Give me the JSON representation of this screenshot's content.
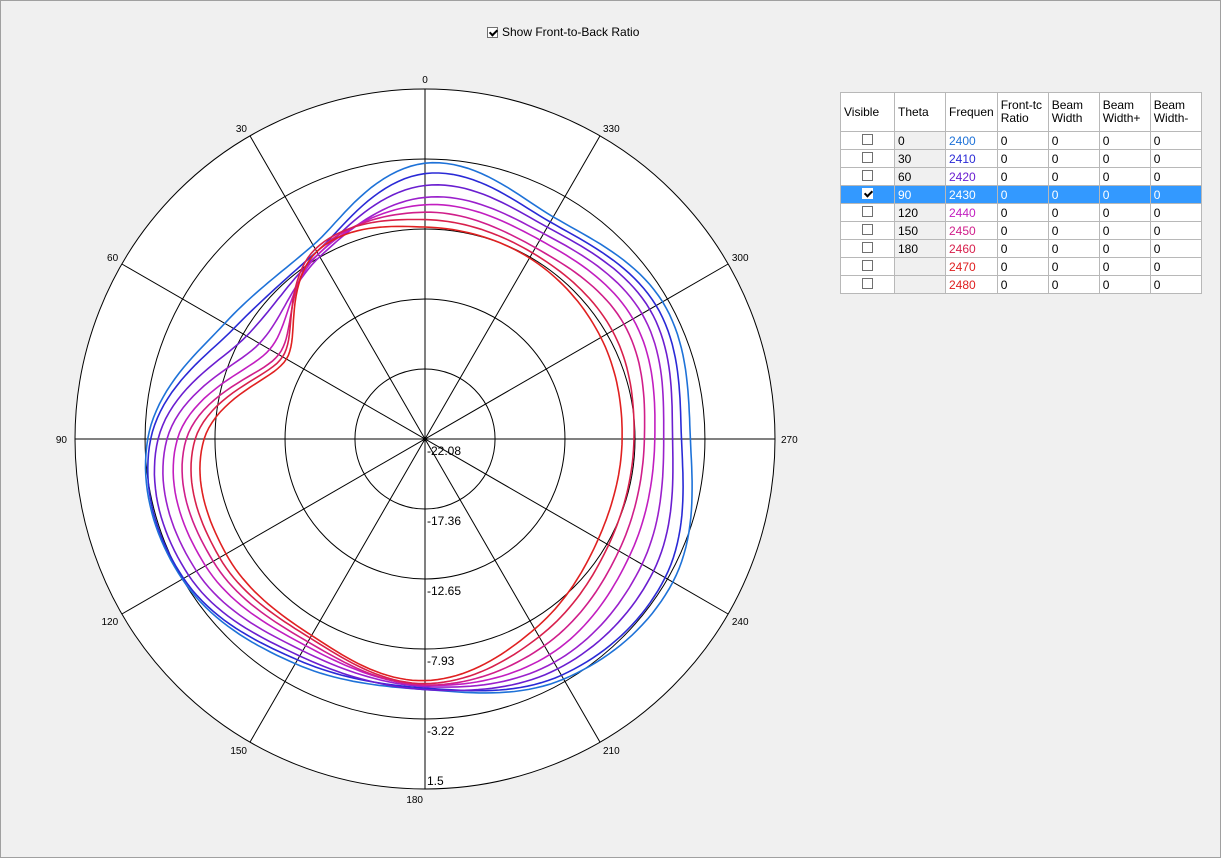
{
  "toolbar": {
    "fbr_label": "Show Front-to-Back Ratio",
    "fbr_checked": true
  },
  "chart_data": {
    "type": "polar",
    "angle_labels": [
      "0",
      "30",
      "60",
      "90",
      "120",
      "150",
      "180",
      "210",
      "240",
      "270",
      "300",
      "330"
    ],
    "radial_labels": [
      "-22.08",
      "-17.36",
      "-12.65",
      "-7.93",
      "-3.22",
      "1.5"
    ],
    "rlim": [
      -22.08,
      1.5
    ],
    "grid": true,
    "series": [
      {
        "name": "2400",
        "color": "#1e72d8",
        "r": [
          -3.5,
          -7.0,
          -6.5,
          -3.4,
          -3.2,
          -4.6,
          -5.2,
          -3.4,
          -2.8,
          -4.2,
          -3.6,
          -4.8
        ]
      },
      {
        "name": "2410",
        "color": "#2a2ad6",
        "r": [
          -4.2,
          -7.5,
          -7.2,
          -3.6,
          -3.3,
          -4.9,
          -5.3,
          -3.7,
          -3.4,
          -4.8,
          -4.1,
          -5.2
        ]
      },
      {
        "name": "2420",
        "color": "#6a1ed0",
        "r": [
          -5.0,
          -7.7,
          -8.2,
          -4.1,
          -3.7,
          -5.2,
          -5.2,
          -4.2,
          -4.3,
          -5.4,
          -4.6,
          -5.6
        ]
      },
      {
        "name": "2430",
        "color": "#9a20cc",
        "r": [
          -5.8,
          -7.9,
          -9.2,
          -4.7,
          -4.3,
          -5.6,
          -5.4,
          -4.7,
          -5.2,
          -6.0,
          -5.2,
          -6.1
        ]
      },
      {
        "name": "2440",
        "color": "#c21ec0",
        "r": [
          -6.3,
          -7.7,
          -10.0,
          -5.4,
          -5.0,
          -6.0,
          -5.5,
          -5.3,
          -6.2,
          -6.6,
          -5.9,
          -6.6
        ]
      },
      {
        "name": "2450",
        "color": "#d01e8a",
        "r": [
          -6.8,
          -7.5,
          -10.7,
          -6.0,
          -5.6,
          -6.3,
          -5.5,
          -6.0,
          -7.0,
          -7.3,
          -6.6,
          -7.2
        ]
      },
      {
        "name": "2460",
        "color": "#d8204c",
        "r": [
          -7.3,
          -7.3,
          -11.0,
          -6.6,
          -6.1,
          -6.6,
          -5.6,
          -6.7,
          -7.8,
          -8.0,
          -7.5,
          -7.6
        ]
      },
      {
        "name": "2470",
        "color": "#e02020",
        "r": [
          -7.8,
          -7.5,
          -11.3,
          -7.2,
          -6.6,
          -6.8,
          -5.8,
          -7.3,
          -8.6,
          -8.8,
          -8.4,
          -8.0
        ]
      }
    ]
  },
  "table": {
    "headers": [
      "Visible",
      "Theta",
      "Frequen",
      "Front-tc Ratio",
      "Beam Width",
      "Beam Width+",
      "Beam Width-"
    ],
    "rows": [
      {
        "visible": false,
        "theta": "0",
        "freq": "2400",
        "fbr": "0",
        "bw": "0",
        "bwp": "0",
        "bwm": "0",
        "color": "#1e72d8"
      },
      {
        "visible": false,
        "theta": "30",
        "freq": "2410",
        "fbr": "0",
        "bw": "0",
        "bwp": "0",
        "bwm": "0",
        "color": "#2a2ad6"
      },
      {
        "visible": false,
        "theta": "60",
        "freq": "2420",
        "fbr": "0",
        "bw": "0",
        "bwp": "0",
        "bwm": "0",
        "color": "#6a1ed0"
      },
      {
        "visible": true,
        "theta": "90",
        "freq": "2430",
        "fbr": "0",
        "bw": "0",
        "bwp": "0",
        "bwm": "0",
        "color": "#9a20cc",
        "selected": true
      },
      {
        "visible": false,
        "theta": "120",
        "freq": "2440",
        "fbr": "0",
        "bw": "0",
        "bwp": "0",
        "bwm": "0",
        "color": "#c21ec0"
      },
      {
        "visible": false,
        "theta": "150",
        "freq": "2450",
        "fbr": "0",
        "bw": "0",
        "bwp": "0",
        "bwm": "0",
        "color": "#d01e8a"
      },
      {
        "visible": false,
        "theta": "180",
        "freq": "2460",
        "fbr": "0",
        "bw": "0",
        "bwp": "0",
        "bwm": "0",
        "color": "#d8204c"
      },
      {
        "visible": false,
        "theta": "",
        "freq": "2470",
        "fbr": "0",
        "bw": "0",
        "bwp": "0",
        "bwm": "0",
        "color": "#e02020"
      },
      {
        "visible": false,
        "theta": "",
        "freq": "2480",
        "fbr": "0",
        "bw": "0",
        "bwp": "0",
        "bwm": "0",
        "color": "#e02020"
      }
    ]
  }
}
